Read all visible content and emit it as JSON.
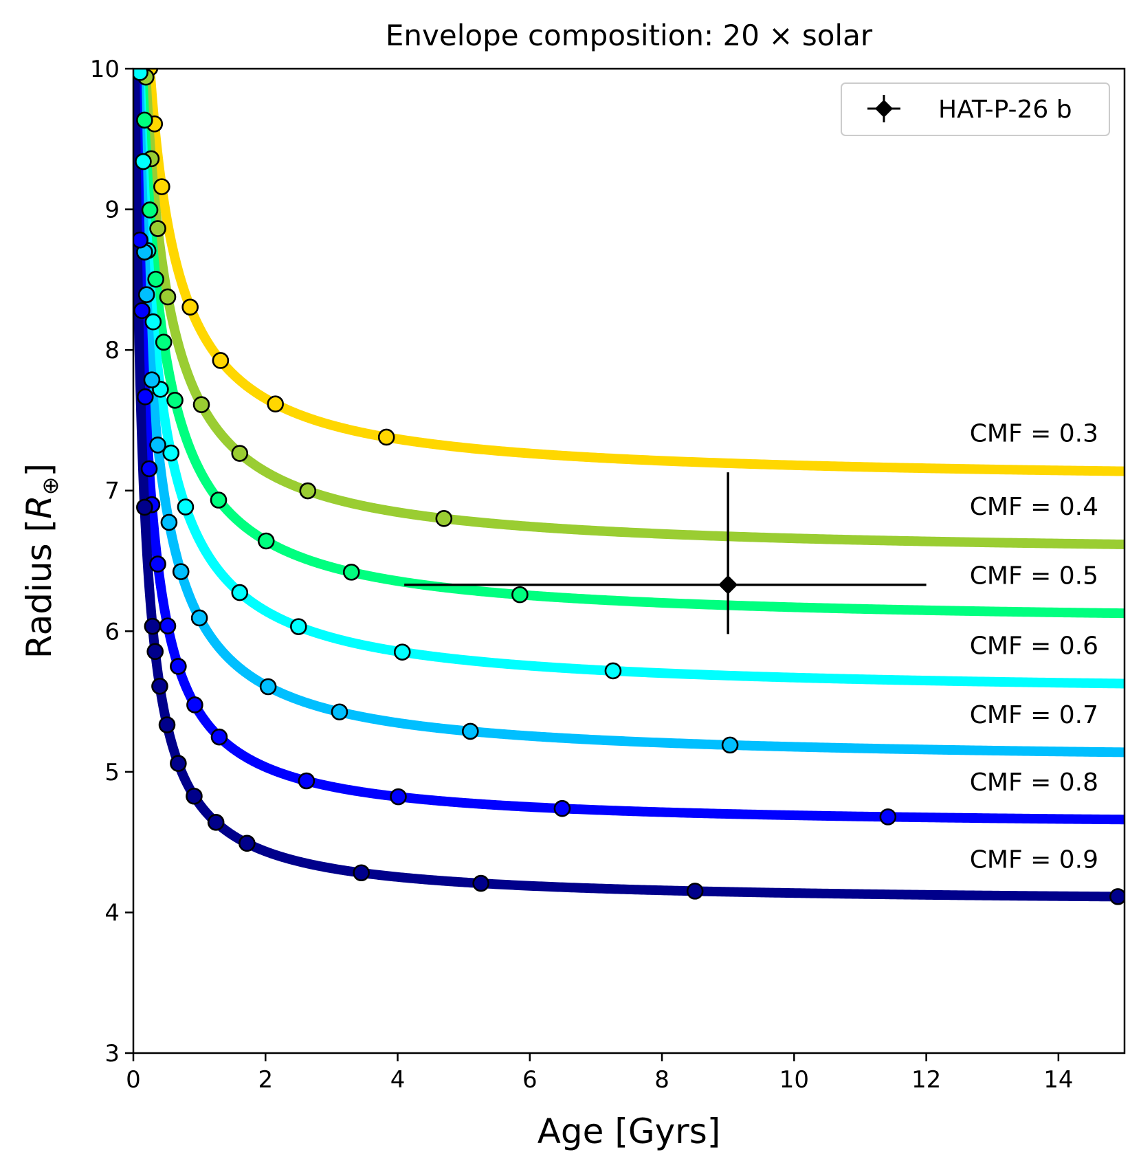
{
  "chart_data": {
    "type": "line",
    "title": "Envelope composition: 20 × solar",
    "xlabel": "Age [Gyrs]",
    "ylabel_main": "Radius [",
    "ylabel_symbol": "R",
    "ylabel_sub": "⊕",
    "ylabel_close": "]",
    "xlim": [
      0,
      15
    ],
    "ylim": [
      3,
      10
    ],
    "xticks": [
      0,
      2,
      4,
      6,
      8,
      10,
      12,
      14
    ],
    "yticks": [
      3,
      4,
      5,
      6,
      7,
      8,
      9,
      10
    ],
    "legend_position": "top-right",
    "legend_label": "HAT-P-26 b",
    "observation": {
      "name": "HAT-P-26 b",
      "age": 9.0,
      "age_err": [
        4.9,
        3.0
      ],
      "radius": 6.33,
      "radius_err": [
        0.35,
        0.8
      ],
      "color": "#000000"
    },
    "series": [
      {
        "name": "CMF = 0.3",
        "color": "#ffd700",
        "model": {
          "a": 7.05,
          "b": 1.33,
          "c": 0.2
        },
        "marker_ages": [
          0.12,
          0.14,
          0.16,
          0.2,
          0.25,
          0.32,
          0.43,
          0.86,
          1.32,
          2.15,
          3.83
        ]
      },
      {
        "name": "CMF = 0.4",
        "color": "#9acd32",
        "model": {
          "a": 6.53,
          "b": 1.33,
          "c": 0.2
        },
        "marker_ages": [
          0.1,
          0.13,
          0.19,
          0.27,
          0.37,
          0.52,
          1.03,
          1.61,
          2.64,
          4.7
        ]
      },
      {
        "name": "CMF = 0.5",
        "color": "#00ff7f",
        "model": {
          "a": 6.04,
          "b": 1.33,
          "c": 0.2
        },
        "marker_ages": [
          0.09,
          0.12,
          0.17,
          0.25,
          0.34,
          0.46,
          0.63,
          1.29,
          2.01,
          3.3,
          5.85
        ]
      },
      {
        "name": "CMF = 0.6",
        "color": "#00ffff",
        "model": {
          "a": 5.54,
          "b": 1.33,
          "c": 0.2
        },
        "marker_ages": [
          0.1,
          0.15,
          0.22,
          0.3,
          0.41,
          0.57,
          0.79,
          1.61,
          2.5,
          4.07,
          7.26
        ]
      },
      {
        "name": "CMF = 0.7",
        "color": "#00bfff",
        "model": {
          "a": 5.06,
          "b": 1.2,
          "c": 0.16
        },
        "marker_ages": [
          0.08,
          0.17,
          0.2,
          0.28,
          0.37,
          0.54,
          0.72,
          1.0,
          2.04,
          3.12,
          5.1,
          9.03
        ]
      },
      {
        "name": "CMF = 0.8",
        "color": "#0000ff",
        "model": {
          "a": 4.6,
          "b": 0.92,
          "c": 0.12
        },
        "marker_ages": [
          0.1,
          0.13,
          0.18,
          0.24,
          0.28,
          0.37,
          0.52,
          0.68,
          0.93,
          1.3,
          2.62,
          4.01,
          6.49,
          11.42
        ]
      },
      {
        "name": "CMF = 0.9",
        "color": "#00008b",
        "model": {
          "a": 4.06,
          "b": 0.79,
          "c": 0.11
        },
        "marker_ages": [
          0.17,
          0.29,
          0.33,
          0.4,
          0.51,
          0.68,
          0.92,
          1.25,
          1.72,
          3.45,
          5.26,
          8.5,
          14.9
        ]
      }
    ]
  }
}
